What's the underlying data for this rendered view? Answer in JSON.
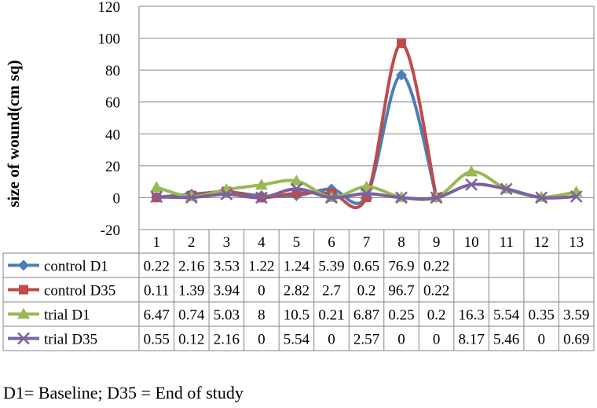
{
  "chart_data": {
    "type": "line",
    "title": "",
    "xlabel": "",
    "ylabel": "size of wound(cm sq)",
    "ylim": [
      -20,
      120
    ],
    "yticks": [
      -20,
      0,
      20,
      40,
      60,
      80,
      100,
      120
    ],
    "grid": true,
    "categories": [
      "1",
      "2",
      "3",
      "4",
      "5",
      "6",
      "7",
      "8",
      "9",
      "10",
      "11",
      "12",
      "13"
    ],
    "series": [
      {
        "name": "control D1",
        "color": "#4A7EBB",
        "marker": "diamond",
        "values": [
          0.22,
          2.16,
          3.53,
          1.22,
          1.24,
          5.39,
          0.65,
          76.9,
          0.22,
          null,
          null,
          null,
          null
        ],
        "labels": [
          "0.22",
          "2.16",
          "3.53",
          "1.22",
          "1.24",
          "5.39",
          "0.65",
          "76.9",
          "0.22",
          "",
          "",
          "",
          ""
        ]
      },
      {
        "name": "control D35",
        "color": "#BE4B48",
        "marker": "square",
        "values": [
          0.11,
          1.39,
          3.94,
          0,
          2.82,
          2.7,
          0.2,
          96.7,
          0.22,
          null,
          null,
          null,
          null
        ],
        "labels": [
          "0.11",
          "1.39",
          "3.94",
          "0",
          "2.82",
          "2.7",
          "0.2",
          "96.7",
          "0.22",
          "",
          "",
          "",
          ""
        ]
      },
      {
        "name": "trial D1",
        "color": "#98B954",
        "marker": "triangle",
        "values": [
          6.47,
          0.74,
          5.03,
          8,
          10.5,
          0.21,
          6.87,
          0.25,
          0.2,
          16.3,
          5.54,
          0.35,
          3.59
        ],
        "labels": [
          "6.47",
          "0.74",
          "5.03",
          "8",
          "10.5",
          "0.21",
          "6.87",
          "0.25",
          "0.2",
          "16.3",
          "5.54",
          "0.35",
          "3.59"
        ]
      },
      {
        "name": "trial D35",
        "color": "#7D60A0",
        "marker": "x",
        "values": [
          0.55,
          0.12,
          2.16,
          0,
          5.54,
          0,
          2.57,
          0,
          0,
          8.17,
          5.46,
          0,
          0.69
        ],
        "labels": [
          "0.55",
          "0.12",
          "2.16",
          "0",
          "5.54",
          "0",
          "2.57",
          "0",
          "0",
          "8.17",
          "5.46",
          "0",
          "0.69"
        ]
      }
    ]
  },
  "footnote": "D1= Baseline; D35 = End of study"
}
